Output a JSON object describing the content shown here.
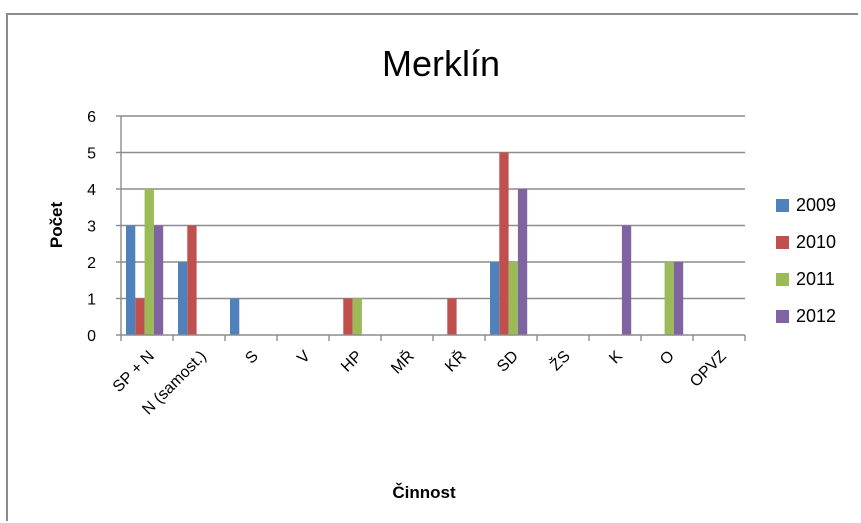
{
  "chart_data": {
    "type": "bar",
    "title": "Merklín",
    "xlabel": "Činnost",
    "ylabel": "Počet",
    "ylim": [
      0,
      6
    ],
    "yticks": [
      0,
      1,
      2,
      3,
      4,
      5,
      6
    ],
    "grid": true,
    "legend_position": "right",
    "categories": [
      "SP + N",
      "N (samost.)",
      "S",
      "V",
      "HP",
      "MŘ",
      "KŘ",
      "SD",
      "ŽS",
      "K",
      "O",
      "OPVZ"
    ],
    "series": [
      {
        "name": "2009",
        "color": "#4f81bd",
        "values": [
          3,
          2,
          1,
          0,
          0,
          0,
          0,
          2,
          0,
          0,
          0,
          0
        ]
      },
      {
        "name": "2010",
        "color": "#c0504d",
        "values": [
          1,
          3,
          0,
          0,
          1,
          0,
          1,
          5,
          0,
          0,
          0,
          0
        ]
      },
      {
        "name": "2011",
        "color": "#9bbb59",
        "values": [
          4,
          0,
          0,
          0,
          1,
          0,
          0,
          2,
          0,
          0,
          2,
          0
        ]
      },
      {
        "name": "2012",
        "color": "#8064a2",
        "values": [
          3,
          0,
          0,
          0,
          0,
          0,
          0,
          4,
          0,
          3,
          2,
          0
        ]
      }
    ]
  }
}
